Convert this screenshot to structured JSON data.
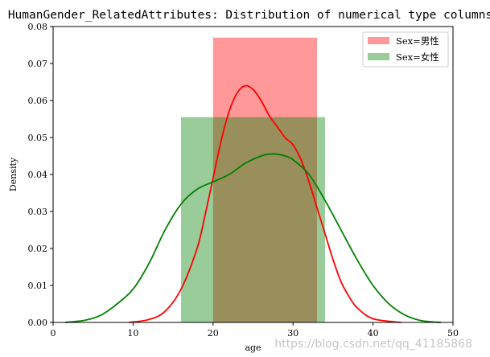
{
  "chart_data": {
    "type": "histogram",
    "title": "HumanGender_RelatedAttributes: Distribution of numerical type columns",
    "xlabel": "age",
    "ylabel": "Density",
    "xlim": [
      0,
      50
    ],
    "ylim": [
      0,
      0.08
    ],
    "xticks": [
      0,
      10,
      20,
      30,
      40,
      50
    ],
    "xtick_labels": [
      "0",
      "10",
      "20",
      "30",
      "40",
      "50"
    ],
    "yticks": [
      0,
      0.01,
      0.02,
      0.03,
      0.04,
      0.05,
      0.06,
      0.07,
      0.08
    ],
    "ytick_labels": [
      "0.00",
      "0.01",
      "0.02",
      "0.03",
      "0.04",
      "0.05",
      "0.06",
      "0.07",
      "0.08"
    ],
    "grid": false,
    "legend_position": "top-right",
    "series": [
      {
        "name": "Sex=男性",
        "color": "#ff0000",
        "bars": [
          {
            "x0": 20,
            "x1": 33,
            "density": 0.077
          }
        ],
        "kde": {
          "x": [
            9.5,
            12,
            14,
            16,
            18,
            19,
            20,
            21,
            22,
            23,
            24,
            25,
            26,
            27,
            28,
            29,
            30,
            31,
            32,
            33,
            34,
            35,
            36,
            37,
            38,
            40,
            43.5
          ],
          "y": [
            0.0,
            0.0008,
            0.003,
            0.009,
            0.02,
            0.029,
            0.039,
            0.049,
            0.057,
            0.062,
            0.064,
            0.063,
            0.06,
            0.056,
            0.053,
            0.05,
            0.048,
            0.044,
            0.038,
            0.031,
            0.024,
            0.017,
            0.011,
            0.007,
            0.004,
            0.001,
            0.0
          ]
        }
      },
      {
        "name": "Sex=女性",
        "color": "#008000",
        "bars": [
          {
            "x0": 16,
            "x1": 34,
            "density": 0.0555
          }
        ],
        "kde": {
          "x": [
            1.5,
            4,
            6,
            8,
            10,
            12,
            14,
            16,
            18,
            20,
            22,
            24,
            26,
            27,
            28,
            29,
            30,
            32,
            34,
            36,
            38,
            40,
            42,
            44,
            46,
            48.5
          ],
          "y": [
            0.0,
            0.0006,
            0.002,
            0.005,
            0.009,
            0.016,
            0.025,
            0.032,
            0.036,
            0.038,
            0.04,
            0.043,
            0.045,
            0.0455,
            0.0455,
            0.045,
            0.044,
            0.04,
            0.033,
            0.025,
            0.017,
            0.01,
            0.005,
            0.002,
            0.0005,
            0.0
          ]
        }
      }
    ]
  },
  "watermark": "https://blog.csdn.net/qq_41185868"
}
